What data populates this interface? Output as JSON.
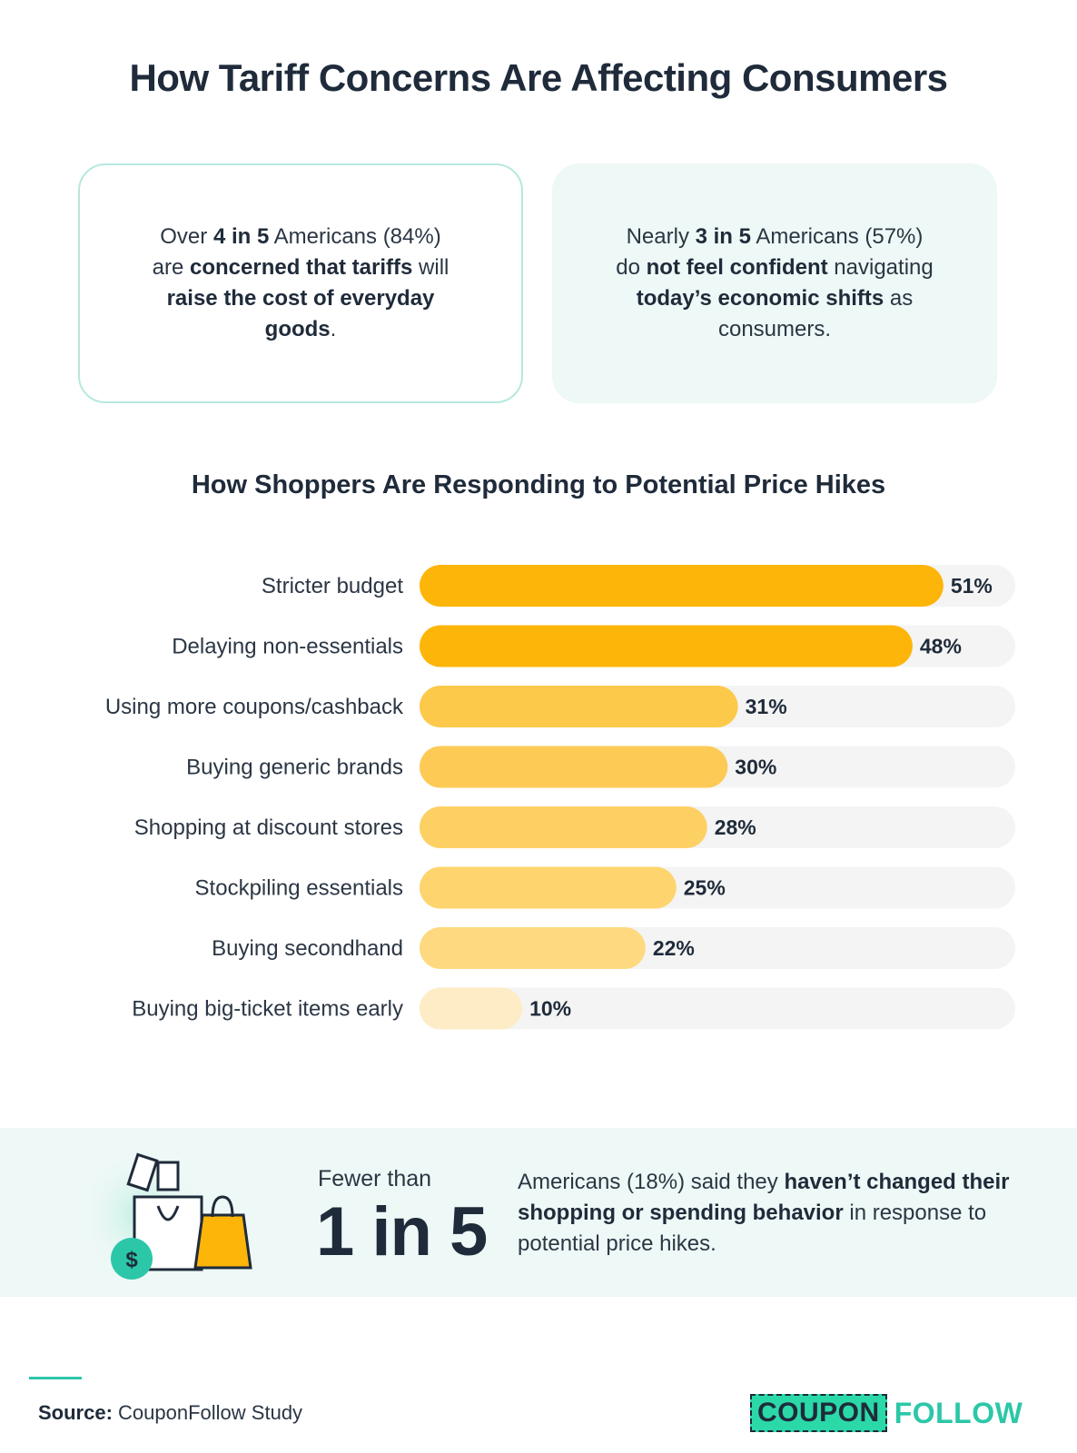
{
  "title": "How Tariff Concerns Are Affecting Consumers",
  "cards": [
    {
      "segments": [
        {
          "text": "Over ",
          "bold": false
        },
        {
          "text": "4 in 5",
          "bold": true
        },
        {
          "text": " Americans (84%) are ",
          "bold": false
        },
        {
          "text": "concerned that tariffs",
          "bold": true
        },
        {
          "text": " will ",
          "bold": false
        },
        {
          "text": "raise the cost of everyday goods",
          "bold": true
        },
        {
          "text": ".",
          "bold": false
        }
      ]
    },
    {
      "segments": [
        {
          "text": "Nearly ",
          "bold": false
        },
        {
          "text": "3 in 5",
          "bold": true
        },
        {
          "text": " Americans (57%) do ",
          "bold": false
        },
        {
          "text": "not feel confident",
          "bold": true
        },
        {
          "text": " navigating ",
          "bold": false
        },
        {
          "text": "today’s economic shifts",
          "bold": true
        },
        {
          "text": " as consumers.",
          "bold": false
        }
      ]
    }
  ],
  "chart_data": {
    "type": "bar",
    "orientation": "horizontal",
    "title": "How Shoppers Are Responding to Potential Price Hikes",
    "categories": [
      "Stricter budget",
      "Delaying non-essentials",
      "Using more coupons/cashback",
      "Buying generic brands",
      "Shopping at discount stores",
      "Stockpiling essentials",
      "Buying secondhand",
      "Buying big-ticket items early"
    ],
    "values": [
      51,
      48,
      31,
      30,
      28,
      25,
      22,
      10
    ],
    "value_labels": [
      "51%",
      "48%",
      "31%",
      "30%",
      "28%",
      "25%",
      "22%",
      "10%"
    ],
    "unit": "%",
    "xlim": [
      0,
      58
    ],
    "bar_colors": [
      "#fdb509",
      "#fdb509",
      "#fdc94a",
      "#fdca55",
      "#fdd063",
      "#fed46e",
      "#fed97f",
      "#feecc6"
    ],
    "track_color": "#f4f4f4",
    "grid": false
  },
  "summary": {
    "prefix": "Fewer than",
    "big_stat": "1 in 5",
    "segments": [
      {
        "text": "Americans (18%) said they ",
        "bold": false
      },
      {
        "text": "haven’t changed their shopping or spending behavior",
        "bold": true
      },
      {
        "text": " in response to potential price hikes.",
        "bold": false
      }
    ],
    "icon": "shopping-bags-dollar-icon"
  },
  "source": {
    "label": "Source:",
    "text": "CouponFollow Study"
  },
  "logo": {
    "part1": "COUPON",
    "part2": "FOLLOW"
  },
  "colors": {
    "accent": "#2bc7a8",
    "bar": "#fdb509",
    "panel": "#eef8f6"
  }
}
